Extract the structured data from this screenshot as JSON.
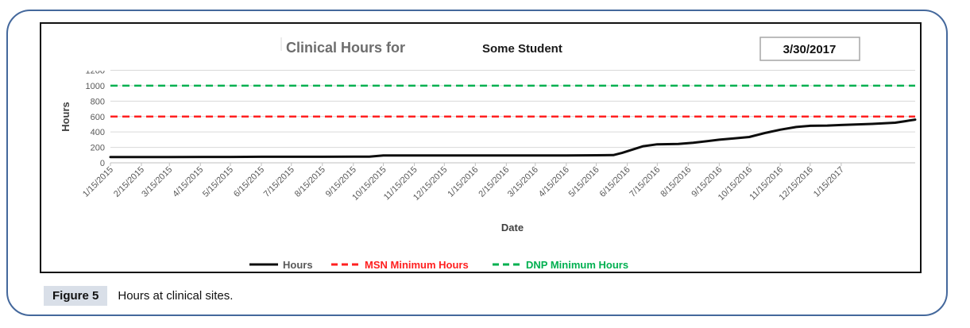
{
  "figure": {
    "label": "Figure 5",
    "caption": "Hours at clinical sites."
  },
  "chart": {
    "title": "Clinical Hours for",
    "student_name": "Some Student",
    "date_value": "3/30/2017"
  },
  "chart_data": {
    "type": "line",
    "title": "Clinical Hours for Some Student",
    "xlabel": "Date",
    "ylabel": "Hours",
    "ylim": [
      0,
      1200
    ],
    "y_ticks": [
      0,
      200,
      400,
      600,
      800,
      1000,
      1200
    ],
    "x_range": [
      "1/15/2015",
      "3/30/2017"
    ],
    "x_tick_labels": [
      "1/15/2015",
      "2/15/2015",
      "3/15/2015",
      "4/15/2015",
      "5/15/2015",
      "6/15/2015",
      "7/15/2015",
      "8/15/2015",
      "9/15/2015",
      "10/15/2015",
      "11/15/2015",
      "12/15/2015",
      "1/15/2016",
      "2/15/2016",
      "3/15/2016",
      "4/15/2016",
      "5/15/2016",
      "6/15/2016",
      "7/15/2016",
      "8/15/2016",
      "9/15/2016",
      "10/15/2016",
      "11/15/2016",
      "12/15/2016",
      "1/15/2017"
    ],
    "grid": "horizontal",
    "legend_position": "bottom",
    "series": [
      {
        "name": "Hours",
        "style": "solid",
        "color": "#0d0d0d",
        "label_color": "#595959",
        "points": [
          [
            "1/15/2015",
            75
          ],
          [
            "3/15/2015",
            75
          ],
          [
            "5/15/2015",
            76
          ],
          [
            "6/15/2015",
            78
          ],
          [
            "8/15/2015",
            78
          ],
          [
            "9/15/2015",
            80
          ],
          [
            "10/1/2015",
            80
          ],
          [
            "10/15/2015",
            95
          ],
          [
            "12/15/2015",
            95
          ],
          [
            "2/15/2016",
            95
          ],
          [
            "4/15/2016",
            95
          ],
          [
            "5/15/2016",
            98
          ],
          [
            "6/1/2016",
            100
          ],
          [
            "6/10/2016",
            130
          ],
          [
            "7/1/2016",
            215
          ],
          [
            "7/15/2016",
            240
          ],
          [
            "8/5/2016",
            245
          ],
          [
            "8/20/2016",
            260
          ],
          [
            "9/15/2016",
            300
          ],
          [
            "10/1/2016",
            318
          ],
          [
            "10/15/2016",
            335
          ],
          [
            "11/1/2016",
            390
          ],
          [
            "11/15/2016",
            430
          ],
          [
            "12/1/2016",
            465
          ],
          [
            "12/15/2016",
            480
          ],
          [
            "1/1/2017",
            483
          ],
          [
            "1/15/2017",
            490
          ],
          [
            "2/15/2017",
            505
          ],
          [
            "3/10/2017",
            520
          ],
          [
            "3/20/2017",
            540
          ],
          [
            "3/30/2017",
            560
          ]
        ]
      },
      {
        "name": "MSN Minimum Hours",
        "style": "dashed",
        "color": "#ff2020",
        "label_color": "#ff2020",
        "constant": 600
      },
      {
        "name": "DNP Minimum Hours",
        "style": "dashed",
        "color": "#00b050",
        "label_color": "#00b050",
        "constant": 1000
      }
    ]
  },
  "colors": {
    "frame": "#44689c",
    "caption_highlight": "#d9dfe8",
    "gridline": "#d9d9d9",
    "axis": "#bfbfbf",
    "tick_label": "#595959",
    "axis_title": "#404040",
    "title_gray": "#6d6d6d",
    "student_name": "#1a1a1a",
    "date_border": "#a6a6a6"
  }
}
